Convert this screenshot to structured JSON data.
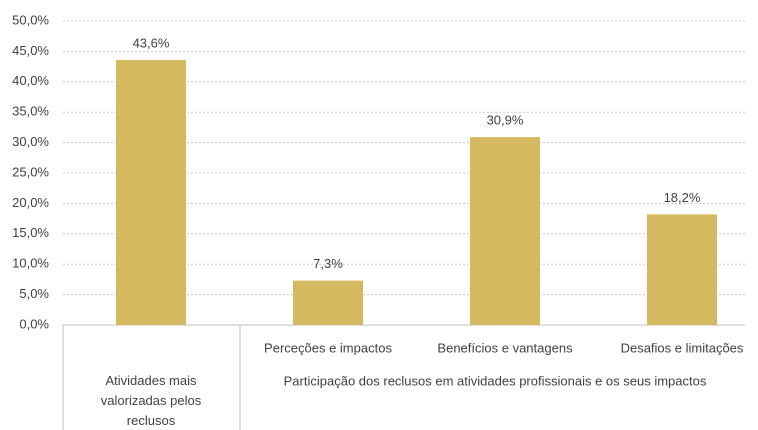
{
  "chart_data": {
    "type": "bar",
    "categories": [
      "Atividades mais valorizadas pelos reclusos",
      "Perceções e impactos",
      "Benefícios e vantagens",
      "Desafios e limitações"
    ],
    "group_label": "Participação dos reclusos em atividades profissionais e os seus impactos",
    "values": [
      43.6,
      7.3,
      30.9,
      18.2
    ],
    "value_labels": [
      "43,6%",
      "7,3%",
      "30,9%",
      "18,2%"
    ],
    "color": "#d4b960",
    "ylim": [
      0,
      50
    ],
    "yticks": [
      {
        "value": 0,
        "label": "0,0%"
      },
      {
        "value": 5,
        "label": "5,0%"
      },
      {
        "value": 10,
        "label": "10,0%"
      },
      {
        "value": 15,
        "label": "15,0%"
      },
      {
        "value": 20,
        "label": "20,0%"
      },
      {
        "value": 25,
        "label": "25,0%"
      },
      {
        "value": 30,
        "label": "30,0%"
      },
      {
        "value": 35,
        "label": "35,0%"
      },
      {
        "value": 40,
        "label": "40,0%"
      },
      {
        "value": 45,
        "label": "45,0%"
      },
      {
        "value": 50,
        "label": "50,0%"
      }
    ],
    "grid": true
  }
}
